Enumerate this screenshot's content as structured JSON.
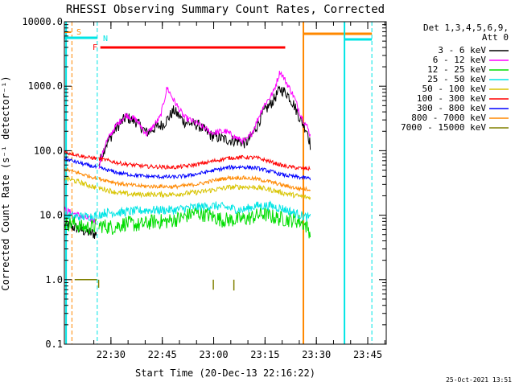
{
  "chart_data": {
    "type": "line",
    "title": "RHESSI Observing Summary Count Rates, Corrected",
    "xlabel": "Start Time (20-Dec-13 22:16:22)",
    "ylabel": "Corrected Count Rate (s⁻¹ detector⁻¹)",
    "yscale": "log",
    "ylim": [
      0.1,
      10000
    ],
    "y_tick_labels": [
      "0.1",
      "1.0",
      "10.0",
      "100.0",
      "1000.0",
      "10000.0"
    ],
    "xlim_minutes_from_start": [
      0,
      94
    ],
    "x_ticks": [
      {
        "label": "22:30",
        "minute": 13.6
      },
      {
        "label": "22:45",
        "minute": 28.6
      },
      {
        "label": "23:00",
        "minute": 43.6
      },
      {
        "label": "23:15",
        "minute": 58.6
      },
      {
        "label": "23:30",
        "minute": 73.6
      },
      {
        "label": "23:45",
        "minute": 88.6
      }
    ],
    "legend": {
      "header_line1": "Det 1,3,4,5,6,9,",
      "header_line2": "Att 0",
      "placement": "right"
    },
    "grid": false,
    "series": [
      {
        "name": "3 - 6 keV",
        "color": "#000000",
        "points": [
          [
            0,
            7
          ],
          [
            3,
            6.5
          ],
          [
            6.5,
            5.5
          ],
          [
            9.5,
            5
          ],
          [
            10,
            60
          ],
          [
            12,
            120
          ],
          [
            15,
            220
          ],
          [
            18,
            330
          ],
          [
            21,
            280
          ],
          [
            24,
            190
          ],
          [
            26,
            220
          ],
          [
            29,
            260
          ],
          [
            32,
            420
          ],
          [
            35,
            280
          ],
          [
            39,
            250
          ],
          [
            43,
            170
          ],
          [
            47,
            150
          ],
          [
            51,
            140
          ],
          [
            53,
            130
          ],
          [
            55,
            180
          ],
          [
            58,
            380
          ],
          [
            61,
            600
          ],
          [
            63,
            900
          ],
          [
            65,
            780
          ],
          [
            67,
            520
          ],
          [
            69,
            300
          ],
          [
            71,
            200
          ],
          [
            72,
            110
          ]
        ]
      },
      {
        "name": "6 - 12 keV",
        "color": "#ff00ff",
        "points": [
          [
            0,
            12
          ],
          [
            3,
            10.5
          ],
          [
            6.5,
            9
          ],
          [
            9.5,
            8
          ],
          [
            10,
            55
          ],
          [
            12,
            130
          ],
          [
            15,
            240
          ],
          [
            18,
            360
          ],
          [
            21,
            300
          ],
          [
            24,
            180
          ],
          [
            26,
            240
          ],
          [
            28,
            330
          ],
          [
            30,
            950
          ],
          [
            32,
            600
          ],
          [
            35,
            330
          ],
          [
            39,
            260
          ],
          [
            43,
            190
          ],
          [
            47,
            200
          ],
          [
            51,
            150
          ],
          [
            53,
            140
          ],
          [
            55,
            200
          ],
          [
            58,
            480
          ],
          [
            61,
            800
          ],
          [
            63,
            1700
          ],
          [
            65,
            1100
          ],
          [
            67,
            700
          ],
          [
            69,
            360
          ],
          [
            71,
            230
          ],
          [
            72,
            160
          ]
        ]
      },
      {
        "name": "12 - 25 keV",
        "color": "#00dd00",
        "points": [
          [
            0,
            7.5
          ],
          [
            3,
            7.5
          ],
          [
            5,
            6.5
          ],
          [
            8,
            6.5
          ],
          [
            10,
            7
          ],
          [
            14,
            6.5
          ],
          [
            18,
            7.5
          ],
          [
            22,
            7
          ],
          [
            26,
            8
          ],
          [
            30,
            8
          ],
          [
            34,
            9
          ],
          [
            38,
            11
          ],
          [
            42,
            10
          ],
          [
            46,
            8.5
          ],
          [
            50,
            8.5
          ],
          [
            54,
            9
          ],
          [
            58,
            10.5
          ],
          [
            62,
            9
          ],
          [
            66,
            8.5
          ],
          [
            69,
            8
          ],
          [
            71,
            6.5
          ],
          [
            72,
            5
          ]
        ]
      },
      {
        "name": "25 - 50 keV",
        "color": "#00e5e5",
        "points": [
          [
            0,
            10
          ],
          [
            3,
            9.5
          ],
          [
            6.5,
            9.5
          ],
          [
            9.5,
            10
          ],
          [
            12,
            11
          ],
          [
            16,
            11
          ],
          [
            20,
            11.5
          ],
          [
            24,
            12
          ],
          [
            28,
            12
          ],
          [
            32,
            12
          ],
          [
            36,
            13
          ],
          [
            40,
            13.5
          ],
          [
            44,
            14
          ],
          [
            48,
            13
          ],
          [
            52,
            12
          ],
          [
            56,
            14
          ],
          [
            60,
            14
          ],
          [
            64,
            12.5
          ],
          [
            68,
            10.5
          ],
          [
            70,
            9.5
          ],
          [
            72,
            9
          ]
        ]
      },
      {
        "name": "50 - 100 keV",
        "color": "#d8c400",
        "points": [
          [
            0,
            38
          ],
          [
            4,
            33
          ],
          [
            8,
            28
          ],
          [
            12,
            25
          ],
          [
            16,
            22
          ],
          [
            20,
            21
          ],
          [
            24,
            21
          ],
          [
            28,
            21
          ],
          [
            32,
            21
          ],
          [
            36,
            22
          ],
          [
            40,
            23
          ],
          [
            44,
            25
          ],
          [
            48,
            27
          ],
          [
            52,
            27.5
          ],
          [
            56,
            27
          ],
          [
            60,
            25
          ],
          [
            64,
            22
          ],
          [
            68,
            20
          ],
          [
            72,
            18.5
          ]
        ]
      },
      {
        "name": "100 - 300 keV",
        "color": "#ff0000",
        "points": [
          [
            0,
            95
          ],
          [
            3,
            88
          ],
          [
            6,
            80
          ],
          [
            9,
            76
          ],
          [
            12,
            72
          ],
          [
            16,
            64
          ],
          [
            20,
            60
          ],
          [
            24,
            57
          ],
          [
            28,
            56
          ],
          [
            32,
            55
          ],
          [
            36,
            58
          ],
          [
            40,
            63
          ],
          [
            44,
            70
          ],
          [
            48,
            77
          ],
          [
            52,
            79
          ],
          [
            56,
            78
          ],
          [
            60,
            68
          ],
          [
            64,
            58
          ],
          [
            68,
            54
          ],
          [
            72,
            52
          ]
        ]
      },
      {
        "name": "300 - 800 keV",
        "color": "#0000ff",
        "points": [
          [
            0,
            75
          ],
          [
            3,
            68
          ],
          [
            6,
            61
          ],
          [
            9,
            56
          ],
          [
            12,
            51
          ],
          [
            16,
            45
          ],
          [
            20,
            42
          ],
          [
            24,
            40
          ],
          [
            28,
            39.5
          ],
          [
            32,
            39
          ],
          [
            36,
            41
          ],
          [
            40,
            45
          ],
          [
            44,
            50
          ],
          [
            48,
            55
          ],
          [
            52,
            56
          ],
          [
            56,
            54
          ],
          [
            60,
            48
          ],
          [
            64,
            42
          ],
          [
            68,
            39
          ],
          [
            72,
            37
          ]
        ]
      },
      {
        "name": "800 - 7000 keV",
        "color": "#ff8800",
        "points": [
          [
            0,
            52
          ],
          [
            3,
            47
          ],
          [
            6,
            42
          ],
          [
            9,
            38
          ],
          [
            12,
            35
          ],
          [
            16,
            31
          ],
          [
            20,
            29
          ],
          [
            24,
            28
          ],
          [
            28,
            28
          ],
          [
            32,
            27.5
          ],
          [
            36,
            29
          ],
          [
            40,
            31
          ],
          [
            44,
            35
          ],
          [
            48,
            38
          ],
          [
            52,
            38
          ],
          [
            56,
            36.5
          ],
          [
            60,
            33
          ],
          [
            64,
            29
          ],
          [
            68,
            26
          ],
          [
            72,
            25
          ]
        ]
      },
      {
        "name": "7000 - 15000 keV",
        "color": "#808000",
        "points": [
          [
            3,
            1
          ],
          [
            9.5,
            1
          ]
        ]
      }
    ],
    "annotations": [
      {
        "label": "S",
        "color": "#ff8800"
      },
      {
        "label": "N",
        "color": "#00e5e5"
      },
      {
        "label": "F",
        "color": "#ff0000"
      }
    ],
    "timestamp": "25-Oct-2021 13:51"
  }
}
